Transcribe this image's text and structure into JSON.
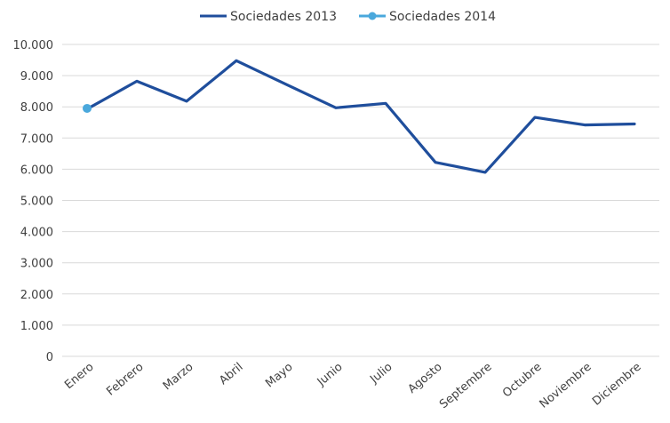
{
  "chart_data": {
    "type": "line",
    "title": "",
    "xlabel": "",
    "ylabel": "",
    "categories": [
      "Enero",
      "Febrero",
      "Marzo",
      "Abril",
      "Mayo",
      "Junio",
      "Julio",
      "Agosto",
      "Septembre",
      "Octubre",
      "Noviembre",
      "Diciembre"
    ],
    "y_tick_labels": [
      "0",
      "1.000",
      "2.000",
      "3.000",
      "4.000",
      "5.000",
      "6.000",
      "7.000",
      "8.000",
      "9.000",
      "10.000"
    ],
    "ylim": [
      0,
      10000
    ],
    "grid": true,
    "legend_position": "top",
    "series": [
      {
        "name": "Sociedades 2013",
        "color": "#1f4e9c",
        "markers": false,
        "values": [
          7930,
          8820,
          8180,
          9480,
          8720,
          7970,
          8110,
          6220,
          5900,
          7660,
          7420,
          7450
        ]
      },
      {
        "name": "Sociedades 2014",
        "color": "#4aa8dc",
        "markers": true,
        "values": [
          7950,
          null,
          null,
          null,
          null,
          null,
          null,
          null,
          null,
          null,
          null,
          null
        ]
      }
    ]
  }
}
